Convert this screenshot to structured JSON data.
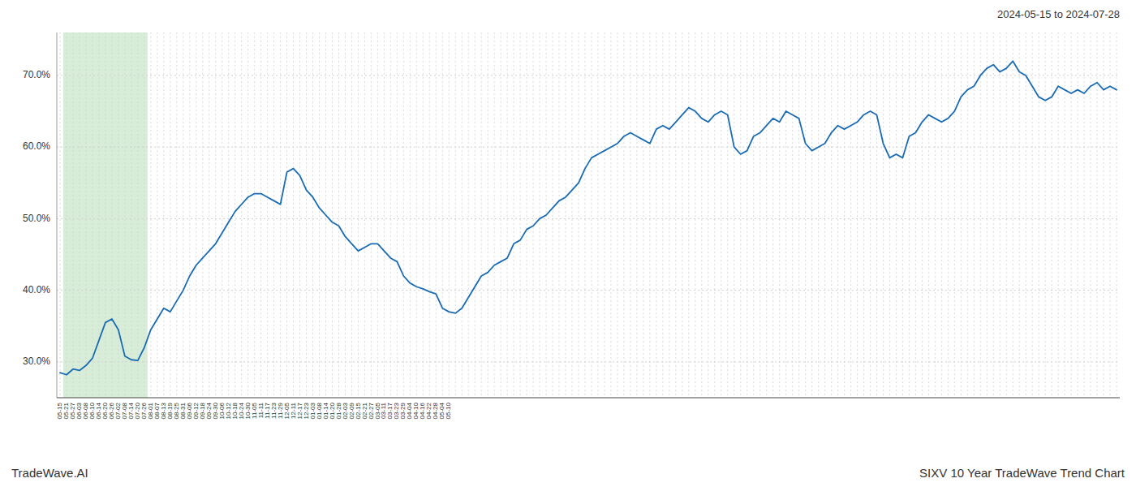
{
  "chart_data": {
    "type": "line",
    "title": "SIXV 10 Year TradeWave Trend Chart",
    "subtitle": "2024-05-15 to 2024-07-28",
    "annotations": [
      "TradeWave.AI"
    ],
    "color": "#1a6bb5",
    "grid": true,
    "highlight": {
      "from": "05-21",
      "to": "07-26",
      "color": "#d8edd8"
    },
    "ylim": [
      25.0,
      76.0
    ],
    "yticks": [
      {
        "value": 30.0,
        "label": "30.0%"
      },
      {
        "value": 40.0,
        "label": "40.0%"
      },
      {
        "value": 50.0,
        "label": "50.0%"
      },
      {
        "value": 60.0,
        "label": "60.0%"
      },
      {
        "value": 70.0,
        "label": "70.0%"
      }
    ],
    "categories": [
      "05-15",
      "05-21",
      "05-27",
      "06-03",
      "06-08",
      "06-10",
      "06-14",
      "06-20",
      "06-26",
      "07-02",
      "07-08",
      "07-14",
      "07-20",
      "07-26",
      "08-01",
      "08-07",
      "08-13",
      "08-19",
      "08-25",
      "08-31",
      "09-06",
      "09-12",
      "09-18",
      "09-24",
      "09-30",
      "10-06",
      "10-12",
      "10-18",
      "10-24",
      "10-30",
      "11-05",
      "11-11",
      "11-17",
      "11-23",
      "11-29",
      "12-05",
      "12-11",
      "12-17",
      "12-23",
      "01-03",
      "01-08",
      "01-14",
      "01-20",
      "01-28",
      "02-03",
      "02-09",
      "02-15",
      "02-21",
      "02-27",
      "03-05",
      "03-11",
      "03-17",
      "03-23",
      "03-29",
      "04-04",
      "04-10",
      "04-16",
      "04-22",
      "04-28",
      "05-04",
      "05-10",
      null,
      null,
      null,
      null,
      null,
      null,
      null,
      null,
      null,
      null,
      null,
      null,
      null,
      null,
      null,
      null,
      null,
      null,
      null,
      null,
      null,
      null,
      null,
      null,
      null,
      null,
      null,
      null,
      null,
      null,
      null,
      null,
      null,
      null,
      null,
      null,
      null,
      null,
      null,
      null,
      null,
      null,
      null,
      null,
      null,
      null,
      null,
      null,
      null,
      null,
      null,
      null,
      null,
      null,
      null,
      null,
      null,
      null,
      null,
      null,
      null,
      null,
      null,
      null,
      null,
      null,
      null,
      null,
      null,
      null,
      null,
      null,
      null,
      null,
      null,
      null,
      null,
      null,
      null,
      null,
      null,
      null,
      null,
      null,
      null,
      null,
      null,
      null,
      null,
      null,
      null,
      null,
      null,
      null,
      null,
      null,
      null,
      null,
      null,
      null,
      null,
      null,
      null
    ],
    "values": [
      28.5,
      28.2,
      29.0,
      28.8,
      29.5,
      30.5,
      33.0,
      35.5,
      36.0,
      34.5,
      30.8,
      30.3,
      30.2,
      32.0,
      34.5,
      36.0,
      37.5,
      37.0,
      38.5,
      40.0,
      42.0,
      43.5,
      44.5,
      45.5,
      46.5,
      48.0,
      49.5,
      51.0,
      52.0,
      53.0,
      53.5,
      53.5,
      53.0,
      52.5,
      52.0,
      56.5,
      57.0,
      56.0,
      54.0,
      53.0,
      51.5,
      50.5,
      49.5,
      49.0,
      47.5,
      46.5,
      45.5,
      46.0,
      46.5,
      46.5,
      45.5,
      44.5,
      44.0,
      42.0,
      41.0,
      40.5,
      40.2,
      39.8,
      39.5,
      37.5,
      37.0,
      36.8,
      37.5,
      39.0,
      40.5,
      42.0,
      42.5,
      43.5,
      44.0,
      44.5,
      46.5,
      47.0,
      48.5,
      49.0,
      50.0,
      50.5,
      51.5,
      52.5,
      53.0,
      54.0,
      55.0,
      57.0,
      58.5,
      59.0,
      59.5,
      60.0,
      60.5,
      61.5,
      62.0,
      61.5,
      61.0,
      60.5,
      62.5,
      63.0,
      62.5,
      63.5,
      64.5,
      65.5,
      65.0,
      64.0,
      63.5,
      64.5,
      65.0,
      64.5,
      60.0,
      59.0,
      59.5,
      61.5,
      62.0,
      63.0,
      64.0,
      63.5,
      65.0,
      64.5,
      64.0,
      60.5,
      59.5,
      60.0,
      60.5,
      62.0,
      63.0,
      62.5,
      63.0,
      63.5,
      64.5,
      65.0,
      64.5,
      60.5,
      58.5,
      59.0,
      58.5,
      61.5,
      62.0,
      63.5,
      64.5,
      64.0,
      63.5,
      64.0,
      65.0,
      67.0,
      68.0,
      68.5,
      70.0,
      71.0,
      71.5,
      70.5,
      71.0,
      72.0,
      70.5,
      70.0,
      68.5,
      67.0,
      66.5,
      67.0,
      68.5,
      68.0,
      67.5,
      68.0,
      67.5,
      68.5,
      69.0,
      68.0,
      68.5,
      68.0
    ]
  }
}
